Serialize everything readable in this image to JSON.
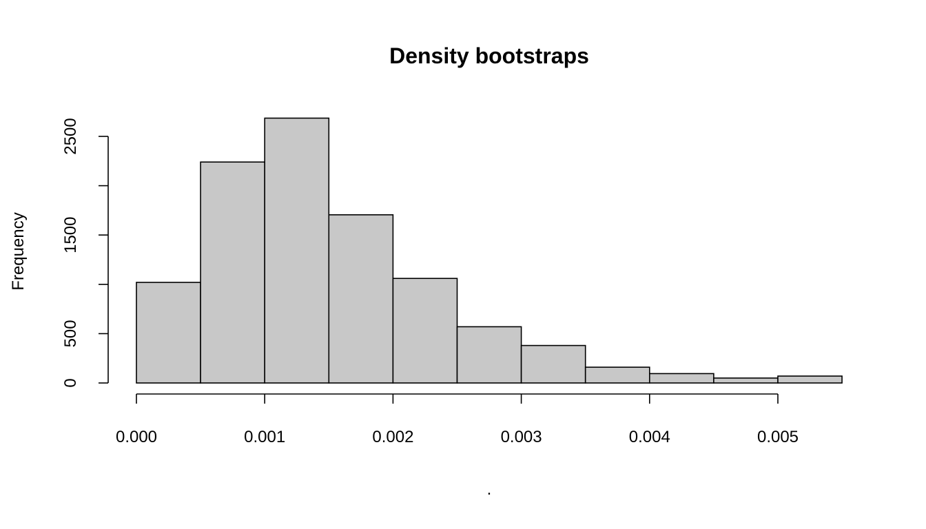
{
  "chart_data": {
    "type": "bar",
    "title": "Density bootstraps",
    "xlabel": ".",
    "ylabel": "Frequency",
    "bin_edges": [
      0.0,
      0.0005,
      0.001,
      0.0015,
      0.002,
      0.0025,
      0.003,
      0.0035,
      0.004,
      0.0045,
      0.005,
      0.0055
    ],
    "values": [
      1020,
      2240,
      2685,
      1705,
      1060,
      570,
      380,
      160,
      95,
      50,
      70
    ],
    "xlim": [
      0.0,
      0.005
    ],
    "ylim": [
      0,
      2500
    ],
    "x_ticks": [
      0.0,
      0.001,
      0.002,
      0.003,
      0.004,
      0.005
    ],
    "x_tick_labels": [
      "0.000",
      "0.001",
      "0.002",
      "0.003",
      "0.004",
      "0.005"
    ],
    "y_ticks": [
      0,
      500,
      1000,
      1500,
      2000,
      2500
    ],
    "y_tick_labels": [
      "0",
      "500",
      "",
      "1500",
      "",
      "2500"
    ],
    "grid": false,
    "bar_color": "#c8c8c8"
  }
}
